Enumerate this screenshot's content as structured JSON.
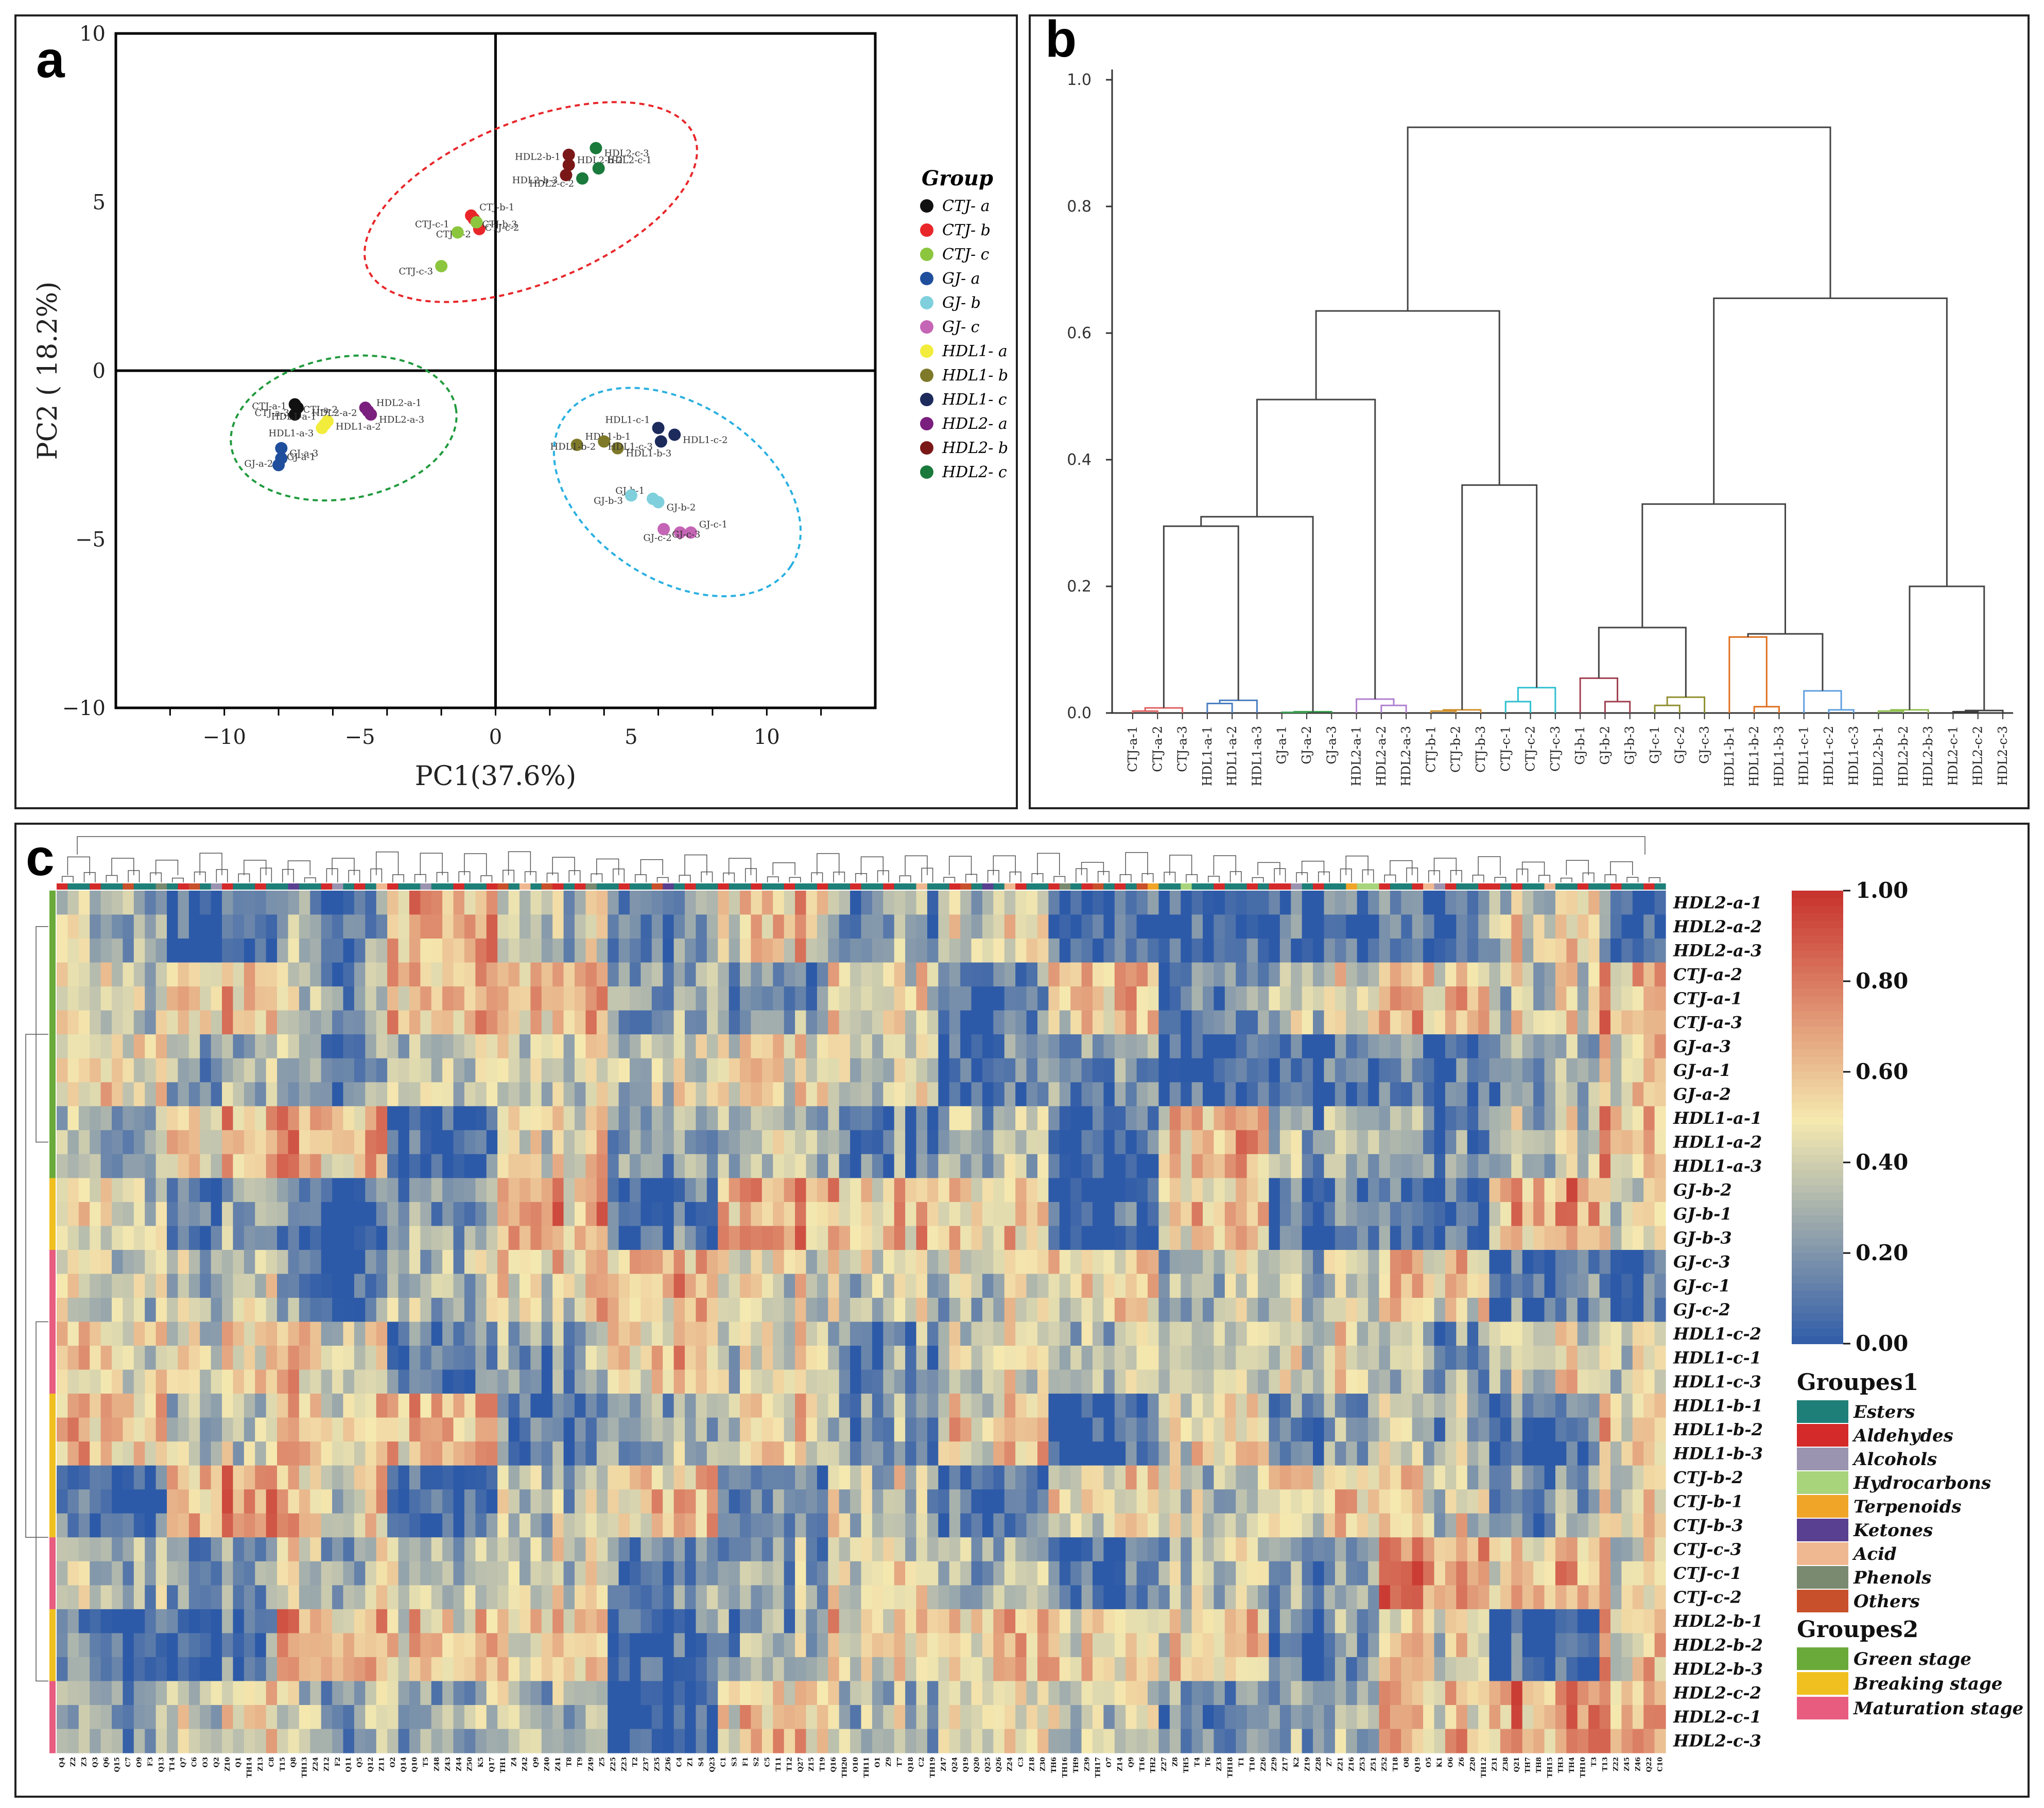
{
  "panel_letters": {
    "a": "a",
    "b": "b",
    "c": "c"
  },
  "colors": {
    "CTJ-a": "#111111",
    "CTJ-b": "#e8262a",
    "CTJ-c": "#8cc63f",
    "GJ-a": "#1f4e9c",
    "GJ-b": "#7fd0dc",
    "GJ-c": "#c565b5",
    "HDL1-a": "#f2ec3c",
    "HDL1-b": "#7f7a2a",
    "HDL1-c": "#1c2a5c",
    "HDL2-a": "#7a1f7e",
    "HDL2-b": "#7a1818",
    "HDL2-c": "#1a7a3c",
    "ellipse_red": "#e8262a",
    "ellipse_green": "#1f9a3c",
    "ellipse_blue": "#2ab0e0",
    "heat_low": "#2d5aa8",
    "heat_mid": "#f5e9b0",
    "heat_high": "#c8342e"
  },
  "chart_data": [
    {
      "type": "scatter",
      "panel": "a",
      "title": "",
      "xlabel": "PC1(37.6%)",
      "ylabel": "PC2 ( 18.2%)",
      "xlim": [
        -14,
        14
      ],
      "ylim": [
        -10,
        10
      ],
      "xticks": [
        -10,
        -5,
        0,
        5,
        10
      ],
      "yticks": [
        -10,
        -5,
        0,
        5,
        10
      ],
      "xtick_labels": [
        "−10",
        "−5",
        "0",
        "5",
        "10"
      ],
      "ytick_labels": [
        "−10",
        "−5",
        "0",
        "5",
        "10"
      ],
      "legend_title": "Group",
      "legend": [
        "CTJ- a",
        "CTJ- b",
        "CTJ- c",
        "GJ- a",
        "GJ- b",
        "GJ- c",
        "HDL1- a",
        "HDL1- b",
        "HDL1- c",
        "HDL2- a",
        "HDL2- b",
        "HDL2- c"
      ],
      "legend_keys": [
        "CTJ-a",
        "CTJ-b",
        "CTJ-c",
        "GJ-a",
        "GJ-b",
        "GJ-c",
        "HDL1-a",
        "HDL1-b",
        "HDL1-c",
        "HDL2-a",
        "HDL2-b",
        "HDL2-c"
      ],
      "points": [
        {
          "label": "CTJ-a-1",
          "group": "CTJ-a",
          "x": -7.4,
          "y": -1.3
        },
        {
          "label": "CTJ-a-2",
          "group": "CTJ-a",
          "x": -7.4,
          "y": -1.0
        },
        {
          "label": "CTJ-a-3",
          "group": "CTJ-a",
          "x": -7.3,
          "y": -1.1
        },
        {
          "label": "CTJ-b-1",
          "group": "CTJ-b",
          "x": -0.9,
          "y": 4.6
        },
        {
          "label": "CTJ-b-2",
          "group": "CTJ-b",
          "x": -0.6,
          "y": 4.2
        },
        {
          "label": "CTJ-b-3",
          "group": "CTJ-b",
          "x": -0.8,
          "y": 4.5
        },
        {
          "label": "CTJ-c-1",
          "group": "CTJ-c",
          "x": -1.4,
          "y": 4.1
        },
        {
          "label": "CTJ-c-2",
          "group": "CTJ-c",
          "x": -0.7,
          "y": 4.4
        },
        {
          "label": "CTJ-c-3",
          "group": "CTJ-c",
          "x": -2.0,
          "y": 3.1
        },
        {
          "label": "GJ-a-1",
          "group": "GJ-a",
          "x": -8.0,
          "y": -2.8
        },
        {
          "label": "GJ-a-2",
          "group": "GJ-a",
          "x": -7.9,
          "y": -2.6
        },
        {
          "label": "GJ-a-3",
          "group": "GJ-a",
          "x": -7.9,
          "y": -2.3
        },
        {
          "label": "GJ-b-1",
          "group": "GJ-b",
          "x": 5.8,
          "y": -3.8
        },
        {
          "label": "GJ-b-2",
          "group": "GJ-b",
          "x": 6.0,
          "y": -3.9
        },
        {
          "label": "GJ-b-3",
          "group": "GJ-b",
          "x": 5.0,
          "y": -3.7
        },
        {
          "label": "GJ-c-1",
          "group": "GJ-c",
          "x": 7.2,
          "y": -4.8
        },
        {
          "label": "GJ-c-2",
          "group": "GJ-c",
          "x": 6.8,
          "y": -4.8
        },
        {
          "label": "GJ-c-3",
          "group": "GJ-c",
          "x": 6.2,
          "y": -4.7
        },
        {
          "label": "HDL1-a-1",
          "group": "HDL1-a",
          "x": -6.3,
          "y": -1.6
        },
        {
          "label": "HDL1-a-2",
          "group": "HDL1-a",
          "x": -6.2,
          "y": -1.5
        },
        {
          "label": "HDL1-a-3",
          "group": "HDL1-a",
          "x": -6.4,
          "y": -1.7
        },
        {
          "label": "HDL1-b-1",
          "group": "HDL1-b",
          "x": 3.0,
          "y": -2.2
        },
        {
          "label": "HDL1-b-2",
          "group": "HDL1-b",
          "x": 4.0,
          "y": -2.1
        },
        {
          "label": "HDL1-b-3",
          "group": "HDL1-b",
          "x": 4.5,
          "y": -2.3
        },
        {
          "label": "HDL1-c-1",
          "group": "HDL1-c",
          "x": 6.0,
          "y": -1.7
        },
        {
          "label": "HDL1-c-2",
          "group": "HDL1-c",
          "x": 6.6,
          "y": -1.9
        },
        {
          "label": "HDL1-c-3",
          "group": "HDL1-c",
          "x": 6.1,
          "y": -2.1
        },
        {
          "label": "HDL2-a-1",
          "group": "HDL2-a",
          "x": -4.7,
          "y": -1.2
        },
        {
          "label": "HDL2-a-2",
          "group": "HDL2-a",
          "x": -4.8,
          "y": -1.1
        },
        {
          "label": "HDL2-a-3",
          "group": "HDL2-a",
          "x": -4.6,
          "y": -1.3
        },
        {
          "label": "HDL2-b-1",
          "group": "HDL2-b",
          "x": 2.7,
          "y": 6.1
        },
        {
          "label": "HDL2-b-2",
          "group": "HDL2-b",
          "x": 2.7,
          "y": 6.4
        },
        {
          "label": "HDL2-b-3",
          "group": "HDL2-b",
          "x": 2.6,
          "y": 5.8
        },
        {
          "label": "HDL2-c-1",
          "group": "HDL2-c",
          "x": 3.8,
          "y": 6.0
        },
        {
          "label": "HDL2-c-2",
          "group": "HDL2-c",
          "x": 3.2,
          "y": 5.7
        },
        {
          "label": "HDL2-c-3",
          "group": "HDL2-c",
          "x": 3.7,
          "y": 6.6
        }
      ],
      "ellipses": [
        {
          "color_key": "ellipse_red",
          "cx": 1.3,
          "cy": 5.0,
          "rx": 6.5,
          "ry": 2.4,
          "angle_deg": 22
        },
        {
          "color_key": "ellipse_green",
          "cx": -5.6,
          "cy": -1.7,
          "rx": 4.2,
          "ry": 2.1,
          "angle_deg": 10
        },
        {
          "color_key": "ellipse_blue",
          "cx": 6.7,
          "cy": -3.6,
          "rx": 5.0,
          "ry": 2.6,
          "angle_deg": -33
        }
      ]
    },
    {
      "type": "dendrogram",
      "panel": "b",
      "ylim": [
        0,
        1.0
      ],
      "yticks": [
        0.0,
        0.2,
        0.4,
        0.6,
        0.8,
        1.0
      ],
      "ytick_labels": [
        "0.0",
        "0.2",
        "0.4",
        "0.6",
        "0.8",
        "1.0"
      ],
      "leaves": [
        "CTJ-a-1",
        "CTJ-a-2",
        "CTJ-a-3",
        "HDL1-a-1",
        "HDL1-a-2",
        "HDL1-a-3",
        "GJ-a-1",
        "GJ-a-2",
        "GJ-a-3",
        "HDL2-a-1",
        "HDL2-a-2",
        "HDL2-a-3",
        "CTJ-b-1",
        "CTJ-b-2",
        "CTJ-b-3",
        "CTJ-c-1",
        "CTJ-c-2",
        "CTJ-c-3",
        "GJ-b-1",
        "GJ-b-2",
        "GJ-b-3",
        "GJ-c-1",
        "GJ-c-2",
        "GJ-c-3",
        "HDL1-b-1",
        "HDL1-b-2",
        "HDL1-b-3",
        "HDL1-c-1",
        "HDL1-c-2",
        "HDL1-c-3",
        "HDL2-b-1",
        "HDL2-b-2",
        "HDL2-b-3",
        "HDL2-c-1",
        "HDL2-c-2",
        "HDL2-c-3"
      ],
      "merges": [
        {
          "a": "0",
          "b": "1",
          "h": 0.003,
          "c": "#e06060"
        },
        {
          "a": "n0",
          "b": "2",
          "h": 0.008,
          "c": "#e06060"
        },
        {
          "a": "3",
          "b": "4",
          "h": 0.015,
          "c": "#4a7fc0"
        },
        {
          "a": "n2",
          "b": "5",
          "h": 0.02,
          "c": "#4a7fc0"
        },
        {
          "a": "6",
          "b": "7",
          "h": 0.001,
          "c": "#3aa050"
        },
        {
          "a": "n4",
          "b": "8",
          "h": 0.002,
          "c": "#3aa050"
        },
        {
          "a": "10",
          "b": "11",
          "h": 0.012,
          "c": "#b080d0"
        },
        {
          "a": "9",
          "b": "n6",
          "h": 0.022,
          "c": "#b080d0"
        },
        {
          "a": "12",
          "b": "13",
          "h": 0.003,
          "c": "#d0902a"
        },
        {
          "a": "n8",
          "b": "14",
          "h": 0.005,
          "c": "#d0902a"
        },
        {
          "a": "15",
          "b": "16",
          "h": 0.018,
          "c": "#30c0d0"
        },
        {
          "a": "n10",
          "b": "17",
          "h": 0.04,
          "c": "#30c0d0"
        },
        {
          "a": "19",
          "b": "20",
          "h": 0.018,
          "c": "#a04050"
        },
        {
          "a": "18",
          "b": "n12",
          "h": 0.055,
          "c": "#a04050"
        },
        {
          "a": "21",
          "b": "22",
          "h": 0.012,
          "c": "#909030"
        },
        {
          "a": "n14",
          "b": "23",
          "h": 0.025,
          "c": "#909030"
        },
        {
          "a": "25",
          "b": "26",
          "h": 0.01,
          "c": "#e07020"
        },
        {
          "a": "24",
          "b": "n16",
          "h": 0.12,
          "c": "#e07020"
        },
        {
          "a": "28",
          "b": "29",
          "h": 0.005,
          "c": "#60a0e0"
        },
        {
          "a": "27",
          "b": "n18",
          "h": 0.035,
          "c": "#60a0e0"
        },
        {
          "a": "30",
          "b": "31",
          "h": 0.003,
          "c": "#90c050"
        },
        {
          "a": "n20",
          "b": "32",
          "h": 0.005,
          "c": "#90c050"
        },
        {
          "a": "33",
          "b": "34",
          "h": 0.002,
          "c": "#404040"
        },
        {
          "a": "n22",
          "b": "35",
          "h": 0.004,
          "c": "#404040"
        },
        {
          "a": "n1",
          "b": "n3",
          "h": 0.295,
          "c": "#444444"
        },
        {
          "a": "n24",
          "b": "n5",
          "h": 0.31,
          "c": "#444444"
        },
        {
          "a": "n25",
          "b": "n7",
          "h": 0.495,
          "c": "#444444"
        },
        {
          "a": "n9",
          "b": "n11",
          "h": 0.36,
          "c": "#444444"
        },
        {
          "a": "n26",
          "b": "n27",
          "h": 0.635,
          "c": "#444444"
        },
        {
          "a": "n13",
          "b": "n15",
          "h": 0.135,
          "c": "#444444"
        },
        {
          "a": "n17",
          "b": "n19",
          "h": 0.125,
          "c": "#444444"
        },
        {
          "a": "n29",
          "b": "n30",
          "h": 0.33,
          "c": "#444444"
        },
        {
          "a": "n21",
          "b": "n23",
          "h": 0.2,
          "c": "#444444"
        },
        {
          "a": "n31",
          "b": "n32",
          "h": 0.655,
          "c": "#444444"
        },
        {
          "a": "n28",
          "b": "n33",
          "h": 0.925,
          "c": "#444444"
        }
      ]
    },
    {
      "type": "heatmap",
      "panel": "c",
      "value_range": [
        0,
        1
      ],
      "colorbar_ticks": [
        "1.00",
        "0.80",
        "0.60",
        "0.40",
        "0.20",
        "0.00"
      ],
      "rows": [
        "HDL2-a-1",
        "HDL2-a-2",
        "HDL2-a-3",
        "CTJ-a-2",
        "CTJ-a-1",
        "CTJ-a-3",
        "GJ-a-3",
        "GJ-a-1",
        "GJ-a-2",
        "HDL1-a-1",
        "HDL1-a-2",
        "HDL1-a-3",
        "GJ-b-2",
        "GJ-b-1",
        "GJ-b-3",
        "GJ-c-3",
        "GJ-c-1",
        "GJ-c-2",
        "HDL1-c-2",
        "HDL1-c-1",
        "HDL1-c-3",
        "HDL1-b-1",
        "HDL1-b-2",
        "HDL1-b-3",
        "CTJ-b-2",
        "CTJ-b-1",
        "CTJ-b-3",
        "CTJ-c-3",
        "CTJ-c-1",
        "CTJ-c-2",
        "HDL2-b-1",
        "HDL2-b-2",
        "HDL2-b-3",
        "HDL2-c-2",
        "HDL2-c-1",
        "HDL2-c-3"
      ],
      "columns": [
        "Q4",
        "Z2",
        "Z3",
        "Q3",
        "Q6",
        "Q15",
        "C7",
        "O9",
        "F3",
        "Q13",
        "T14",
        "Q7",
        "C6",
        "O3",
        "Q2",
        "Z10",
        "Q1",
        "TH14",
        "Z13",
        "C8",
        "T15",
        "Q8",
        "TH13",
        "Z24",
        "Z12",
        "F2",
        "Q11",
        "Q5",
        "Q12",
        "Z11",
        "O2",
        "Q14",
        "Q10",
        "T5",
        "Z48",
        "Z43",
        "Z44",
        "Z50",
        "K5",
        "Q17",
        "TH1",
        "Z4",
        "Z42",
        "Q9",
        "Z40",
        "Z41",
        "T8",
        "T9",
        "Z49",
        "Z5",
        "Z25",
        "Z23",
        "T2",
        "Z37",
        "Z35",
        "Z36",
        "C4",
        "Z1",
        "S4",
        "Q23",
        "C1",
        "S3",
        "F1",
        "S2",
        "C5",
        "T11",
        "T12",
        "Q27",
        "Z15",
        "T19",
        "Q16",
        "TH20",
        "O10",
        "TH11",
        "O1",
        "Z9",
        "T7",
        "Q18",
        "C2",
        "TH19",
        "Z47",
        "Q24",
        "Q19",
        "Q20",
        "Q25",
        "Q26",
        "Z24",
        "C3",
        "Z18",
        "Z30",
        "TH6",
        "TH16",
        "TH9",
        "Z39",
        "TH17",
        "O7",
        "Z14",
        "Q9",
        "T16",
        "TH2",
        "Z27",
        "Z8",
        "TH5",
        "T4",
        "T6",
        "Z33",
        "TH18",
        "T1",
        "T10",
        "Z26",
        "Z29",
        "Z17",
        "K2",
        "Z19",
        "Z28",
        "Z7",
        "Z21",
        "Z16",
        "Z53",
        "Z51",
        "Z52",
        "T18",
        "O8",
        "Q19",
        "O5",
        "K1",
        "O6",
        "Z6",
        "Z20",
        "TH12",
        "Z31",
        "Z38",
        "Q21",
        "TH7",
        "TH8",
        "TH15",
        "TH3",
        "TH4",
        "TH10",
        "T3",
        "T13",
        "Z22",
        "Z45",
        "Z46",
        "Q22",
        "C10"
      ],
      "groupes1_title": "Groupes1",
      "groupes1": [
        {
          "label": "Esters",
          "color": "#1e7f78"
        },
        {
          "label": "Aldehydes",
          "color": "#d42a2a"
        },
        {
          "label": "Alcohols",
          "color": "#9a94b0"
        },
        {
          "label": "Hydrocarbons",
          "color": "#a8d47c"
        },
        {
          "label": "Terpenoids",
          "color": "#f0a428"
        },
        {
          "label": "Ketones",
          "color": "#5a4090"
        },
        {
          "label": "Acid",
          "color": "#f0b890"
        },
        {
          "label": "Phenols",
          "color": "#7a8a70"
        },
        {
          "label": "Others",
          "color": "#c8502a"
        }
      ],
      "groupes2_title": "Groupes2",
      "groupes2": [
        {
          "label": "Green stage",
          "color": "#6aaa3a"
        },
        {
          "label": "Breaking stage",
          "color": "#f0c020"
        },
        {
          "label": "Maturation stage",
          "color": "#e85c80"
        }
      ]
    }
  ]
}
